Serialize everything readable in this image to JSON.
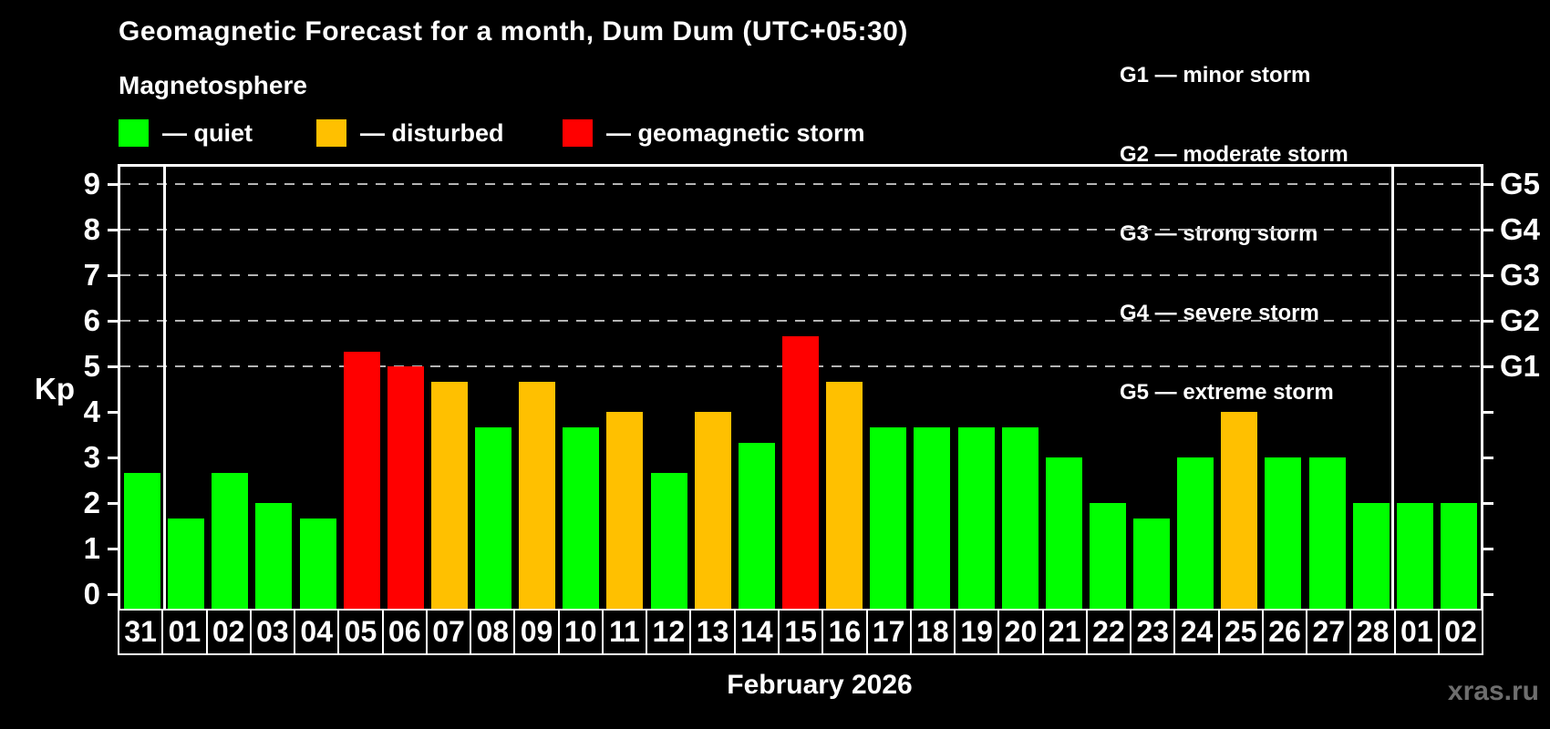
{
  "header": {
    "title": "Geomagnetic Forecast for a month, Dum Dum (UTC+05:30)",
    "subtitle": "Magnetosphere"
  },
  "legend": {
    "items": [
      {
        "key": "quiet",
        "label": "— quiet"
      },
      {
        "key": "disturbed",
        "label": "— disturbed"
      },
      {
        "key": "storm",
        "label": "— geomagnetic storm"
      }
    ]
  },
  "storm_scale": {
    "items": [
      "G1 — minor storm",
      "G2 — moderate storm",
      "G3 — strong storm",
      "G4 — severe storm",
      "G5 — extreme storm"
    ]
  },
  "axes": {
    "y_label": "Kp",
    "y_ticks": [
      0,
      1,
      2,
      3,
      4,
      5,
      6,
      7,
      8,
      9
    ],
    "right_labels": [
      {
        "kp": 5,
        "label": "G1"
      },
      {
        "kp": 6,
        "label": "G2"
      },
      {
        "kp": 7,
        "label": "G3"
      },
      {
        "kp": 8,
        "label": "G4"
      },
      {
        "kp": 9,
        "label": "G5"
      }
    ],
    "x_title": "February 2026"
  },
  "colors": {
    "quiet": "#00ff00",
    "disturbed": "#ffc000",
    "storm": "#ff0000",
    "background": "#000000",
    "axis": "#ffffff",
    "grid": "#b4b4b4",
    "watermark": "#6e6e6e"
  },
  "watermark": "xras.ru",
  "chart_data": {
    "type": "bar",
    "title": "Geomagnetic Forecast for a month, Dum Dum (UTC+05:30)",
    "xlabel": "February 2026",
    "ylabel": "Kp",
    "ylim": [
      0,
      9
    ],
    "grid_kp_levels": [
      5,
      6,
      7,
      8,
      9
    ],
    "legend_position": "top",
    "categories": [
      "31",
      "01",
      "02",
      "03",
      "04",
      "05",
      "06",
      "07",
      "08",
      "09",
      "10",
      "11",
      "12",
      "13",
      "14",
      "15",
      "16",
      "17",
      "18",
      "19",
      "20",
      "21",
      "22",
      "23",
      "24",
      "25",
      "26",
      "27",
      "28",
      "01",
      "02"
    ],
    "values": [
      2.67,
      1.67,
      2.67,
      2.0,
      1.67,
      5.33,
      5.0,
      4.67,
      3.67,
      4.67,
      3.67,
      4.0,
      2.67,
      4.0,
      3.33,
      5.67,
      4.67,
      3.67,
      3.67,
      3.67,
      3.67,
      3.0,
      2.0,
      1.67,
      3.0,
      4.0,
      3.0,
      3.0,
      2.0,
      2.0,
      2.0
    ],
    "statuses": [
      "quiet",
      "quiet",
      "quiet",
      "quiet",
      "quiet",
      "storm",
      "storm",
      "disturbed",
      "quiet",
      "disturbed",
      "quiet",
      "disturbed",
      "quiet",
      "disturbed",
      "quiet",
      "storm",
      "disturbed",
      "quiet",
      "quiet",
      "quiet",
      "quiet",
      "quiet",
      "quiet",
      "quiet",
      "quiet",
      "disturbed",
      "quiet",
      "quiet",
      "quiet",
      "quiet",
      "quiet"
    ],
    "month_separator_after_indices": [
      0,
      28
    ]
  }
}
